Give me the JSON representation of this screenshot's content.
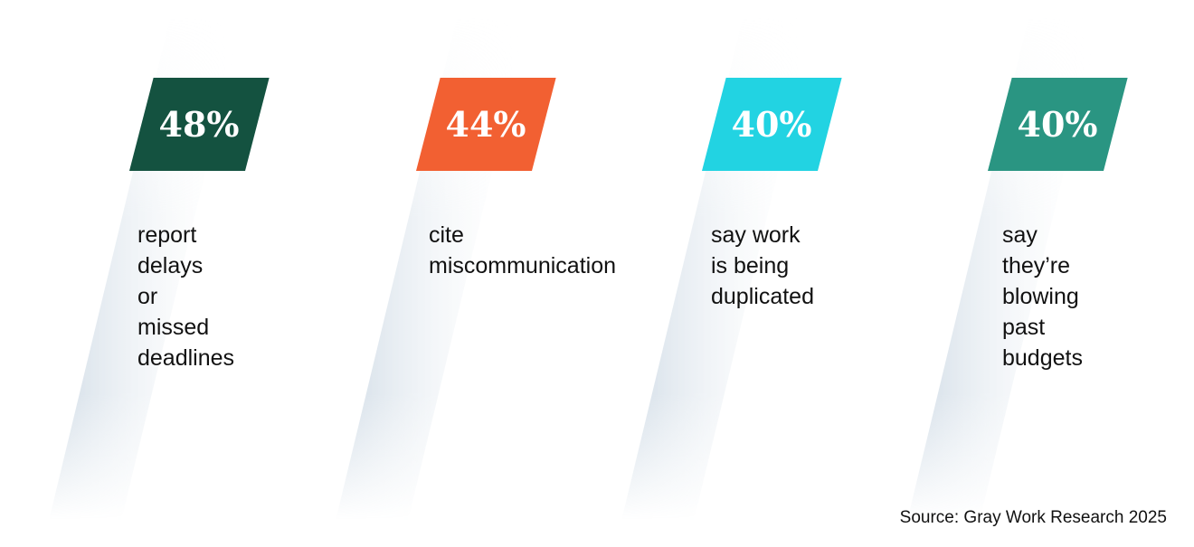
{
  "stats": [
    {
      "value": "48%",
      "color": "#145240",
      "lines": [
        "report delays",
        "or missed",
        "deadlines"
      ]
    },
    {
      "value": "44%",
      "color": "#f26032",
      "lines": [
        "cite",
        "miscommunication"
      ]
    },
    {
      "value": "40%",
      "color": "#22d3e2",
      "lines": [
        "say work",
        "is being",
        "duplicated"
      ]
    },
    {
      "value": "40%",
      "color": "#2a9582",
      "lines": [
        "say they’re",
        "blowing past",
        "budgets"
      ]
    }
  ],
  "source": "Source: Gray Work Research 2025"
}
